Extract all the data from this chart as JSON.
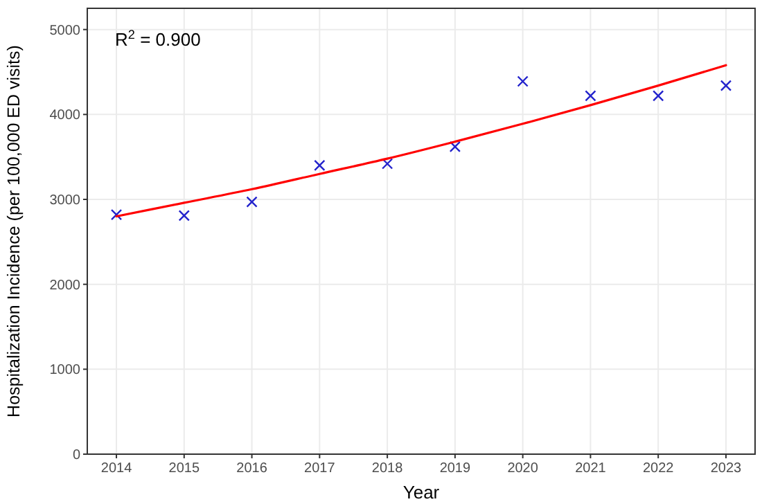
{
  "chart_data": {
    "type": "scatter",
    "xlabel": "Year",
    "ylabel": "Hospitalization Incidence (per 100,000 ED visits)",
    "annotations": [
      "R$^{2}$ = 0.900"
    ],
    "x": [
      2014,
      2015,
      2016,
      2017,
      2018,
      2019,
      2020,
      2021,
      2022,
      2023
    ],
    "xlim": [
      2013.57,
      2023.43
    ],
    "xticks": [
      2014,
      2015,
      2016,
      2017,
      2018,
      2019,
      2020,
      2021,
      2022,
      2023
    ],
    "ylim": [
      0,
      5250
    ],
    "yticks": [
      0,
      1000,
      2000,
      3000,
      4000,
      5000
    ],
    "grid": true,
    "series": [
      {
        "color": "#2222cc",
        "marker": "cross",
        "values": [
          2820,
          2810,
          2970,
          3400,
          3420,
          3620,
          4390,
          4220,
          4220,
          4340
        ]
      },
      {
        "type": "line",
        "color": "#ff0000",
        "marker": "none",
        "line_style": "solid",
        "values": [
          2800,
          2960,
          3120,
          3300,
          3480,
          3680,
          3890,
          4110,
          4340,
          4580
        ]
      }
    ]
  }
}
